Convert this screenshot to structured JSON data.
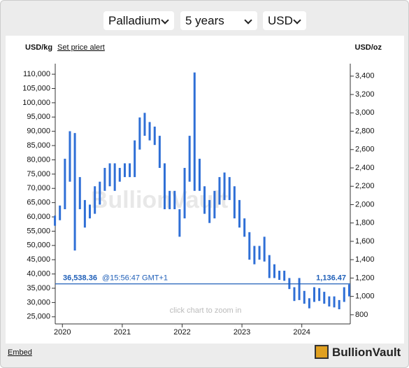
{
  "controls": {
    "metal": "Palladium",
    "period": "5 years",
    "currency": "USD"
  },
  "chart_data": {
    "type": "range-bar",
    "left_axis_label": "USD/kg",
    "right_axis_label": "USD/oz",
    "alert_link": "Set price alert",
    "watermark": "BullionVault",
    "hint": "click chart to zoom in",
    "x": [
      2019.875,
      2019.958,
      2020.042,
      2020.125,
      2020.208,
      2020.292,
      2020.375,
      2020.458,
      2020.542,
      2020.625,
      2020.708,
      2020.792,
      2020.875,
      2020.958,
      2021.042,
      2021.125,
      2021.208,
      2021.292,
      2021.375,
      2021.458,
      2021.542,
      2021.625,
      2021.708,
      2021.792,
      2021.875,
      2021.958,
      2022.042,
      2022.125,
      2022.208,
      2022.292,
      2022.375,
      2022.458,
      2022.542,
      2022.625,
      2022.708,
      2022.792,
      2022.875,
      2022.958,
      2023.042,
      2023.125,
      2023.208,
      2023.292,
      2023.375,
      2023.458,
      2023.542,
      2023.625,
      2023.708,
      2023.792,
      2023.875,
      2023.958,
      2024.042,
      2024.125,
      2024.208,
      2024.292,
      2024.375,
      2024.458,
      2024.542,
      2024.625,
      2024.708,
      2024.792
    ],
    "series": [
      {
        "color": "#2f6fd6",
        "axis": "y2",
        "low": [
          1770,
          1830,
          1950,
          2250,
          1500,
          1950,
          1750,
          1850,
          1900,
          2000,
          2150,
          2200,
          2150,
          2250,
          2300,
          2300,
          2300,
          2600,
          2750,
          2700,
          2650,
          2400,
          1950,
          1950,
          1950,
          1650,
          1850,
          2250,
          2150,
          2150,
          1900,
          1800,
          1850,
          2000,
          2050,
          2050,
          1850,
          1750,
          1650,
          1400,
          1350,
          1400,
          1380,
          1200,
          1200,
          1180,
          1170,
          1080,
          950,
          960,
          920,
          870,
          940,
          950,
          920,
          890,
          880,
          860,
          940,
          1000
        ],
        "high": [
          1880,
          1990,
          2500,
          2800,
          2780,
          2300,
          2050,
          2000,
          2200,
          2250,
          2400,
          2450,
          2450,
          2400,
          2450,
          2450,
          2700,
          2950,
          3000,
          2900,
          2850,
          2750,
          2450,
          2150,
          2150,
          1950,
          2400,
          2750,
          3440,
          2500,
          2200,
          2050,
          2150,
          2300,
          2350,
          2300,
          2200,
          2050,
          1850,
          1700,
          1550,
          1550,
          1650,
          1450,
          1350,
          1280,
          1280,
          1200,
          1100,
          1200,
          1060,
          980,
          1100,
          1090,
          1050,
          1000,
          1000,
          960,
          1100,
          1130
        ]
      }
    ],
    "xlim": [
      2019.88,
      2024.81
    ],
    "xticks": [
      2020,
      2021,
      2022,
      2023,
      2024
    ],
    "ylim": [
      22500,
      113700
    ],
    "yticks": [
      {
        "value": 25000,
        "label": "25,000"
      },
      {
        "value": 30000,
        "label": "30,000"
      },
      {
        "value": 35000,
        "label": "35,000"
      },
      {
        "value": 40000,
        "label": "40,000"
      },
      {
        "value": 45000,
        "label": "45,000"
      },
      {
        "value": 50000,
        "label": "50,000"
      },
      {
        "value": 55000,
        "label": "55,000"
      },
      {
        "value": 60000,
        "label": "60,000"
      },
      {
        "value": 65000,
        "label": "65,000"
      },
      {
        "value": 70000,
        "label": "70,000"
      },
      {
        "value": 75000,
        "label": "75,000"
      },
      {
        "value": 80000,
        "label": "80,000"
      },
      {
        "value": 85000,
        "label": "85,000"
      },
      {
        "value": 90000,
        "label": "90,000"
      },
      {
        "value": 95000,
        "label": "95,000"
      },
      {
        "value": 100000,
        "label": "100,000"
      },
      {
        "value": 105000,
        "label": "105,000"
      },
      {
        "value": 110000,
        "label": "110,000"
      }
    ],
    "y2lim": [
      700,
      3536
    ],
    "y2ticks": [
      800,
      {
        "value": 1000,
        "label": "1,000"
      },
      {
        "value": 1200,
        "label": "1,200"
      },
      {
        "value": 1400,
        "label": "1,400"
      },
      {
        "value": 1600,
        "label": "1,600"
      },
      {
        "value": 1800,
        "label": "1,800"
      },
      {
        "value": 2000,
        "label": "2,000"
      },
      {
        "value": 2200,
        "label": "2,200"
      },
      {
        "value": 2400,
        "label": "2,400"
      },
      {
        "value": 2600,
        "label": "2,600"
      },
      {
        "value": 2800,
        "label": "2,800"
      },
      {
        "value": 3000,
        "label": "3,000"
      },
      {
        "value": 3200,
        "label": "3,200"
      },
      {
        "value": 3400,
        "label": "3,400"
      }
    ],
    "current": {
      "oz": {
        "value": 1136.47,
        "label": "1,136.47"
      },
      "kg": {
        "value": 36538.36,
        "label": "36,538.36"
      },
      "time": "@15:56:47 GMT+1"
    }
  },
  "footer": {
    "embed": "Embed",
    "brand": "BullionVault"
  }
}
